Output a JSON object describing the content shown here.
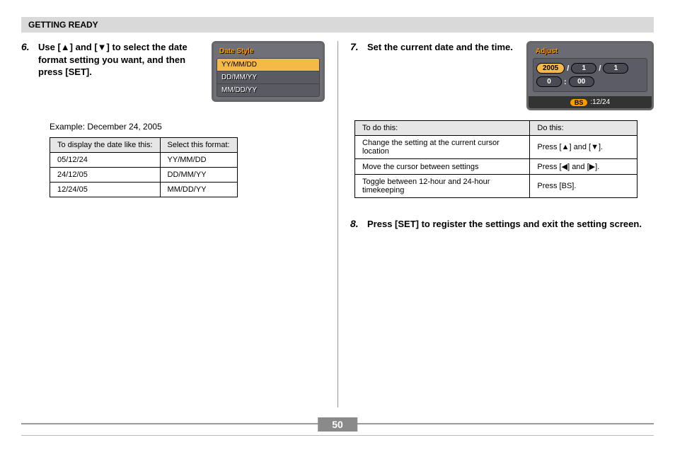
{
  "section_header": "GETTING READY",
  "page_number": "50",
  "step6": {
    "num": "6.",
    "text_parts": [
      "Use [",
      "▲",
      "] and [",
      "▼",
      "] to select the date format setting you want, and then press [SET]."
    ],
    "screen_title": "Date Style",
    "options": [
      {
        "label": "YY/MM/DD",
        "selected": true
      },
      {
        "label": "DD/MM/YY",
        "selected": false
      },
      {
        "label": "MM/DD/YY",
        "selected": false
      }
    ]
  },
  "example": {
    "label": "Example: December 24, 2005",
    "headers": [
      "To display the date like this:",
      "Select this format:"
    ],
    "rows": [
      [
        "05/12/24",
        "YY/MM/DD"
      ],
      [
        "24/12/05",
        "DD/MM/YY"
      ],
      [
        "12/24/05",
        "MM/DD/YY"
      ]
    ]
  },
  "step7": {
    "num": "7.",
    "text": "Set the current date and the time.",
    "screen_title": "Adjust",
    "year": "2005",
    "month": "1",
    "day": "1",
    "hour": "0",
    "minute": "00",
    "footer_badge": "BS",
    "footer_text": ":12/24"
  },
  "actions": {
    "headers": [
      "To do this:",
      "Do this:"
    ],
    "rows": [
      {
        "do": "Change the setting at the current cursor location",
        "press_parts": [
          "Press [",
          "▲",
          "] and [",
          "▼",
          "]."
        ]
      },
      {
        "do": "Move the cursor between settings",
        "press_parts": [
          "Press [",
          "◀",
          "] and [",
          "▶",
          "]."
        ]
      },
      {
        "do": "Toggle between 12-hour and 24-hour timekeeping",
        "press_parts": [
          "Press [BS]."
        ]
      }
    ]
  },
  "step8": {
    "num": "8.",
    "text": "Press [SET] to register the settings and exit the setting screen."
  }
}
